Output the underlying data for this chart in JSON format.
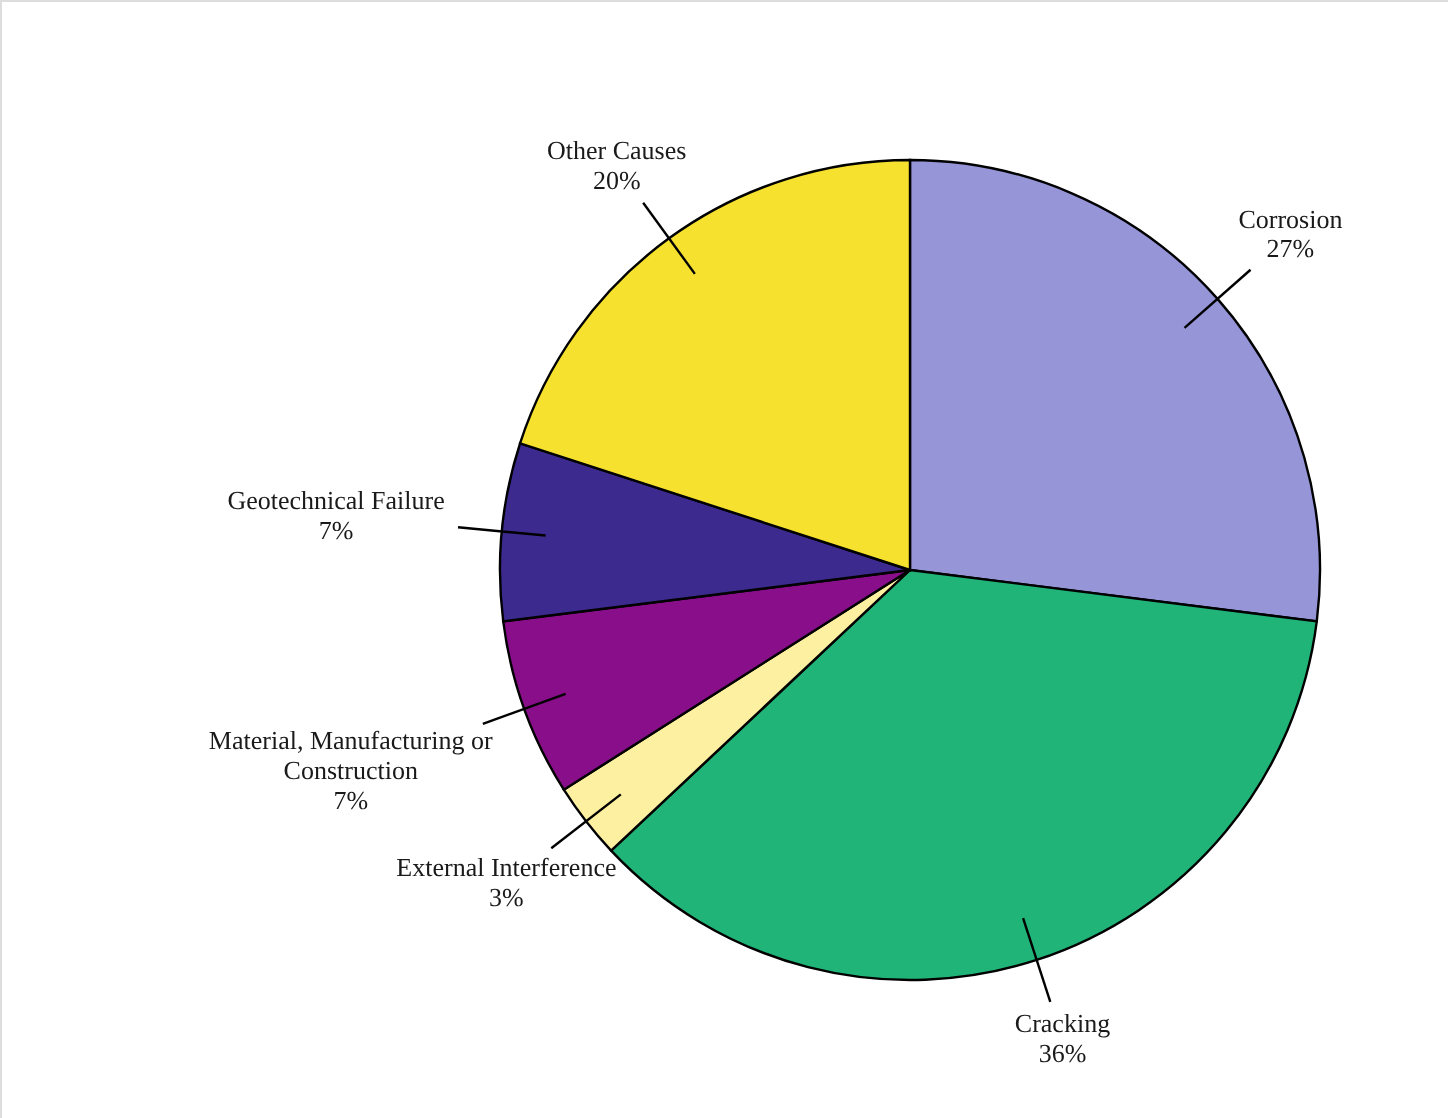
{
  "chart_data": {
    "type": "pie",
    "categories": [
      "Corrosion",
      "Cracking",
      "External Interference",
      "Material, Manufacturing or Construction",
      "Geotechnical Failure",
      "Other Causes"
    ],
    "values": [
      27,
      36,
      3,
      7,
      7,
      20
    ],
    "value_labels": [
      "27%",
      "36%",
      "3%",
      "7%",
      "7%",
      "20%"
    ],
    "colors": [
      "#9595d8",
      "#20b478",
      "#fdf0a0",
      "#880e8a",
      "#3c2a8e",
      "#f5e12e"
    ]
  }
}
